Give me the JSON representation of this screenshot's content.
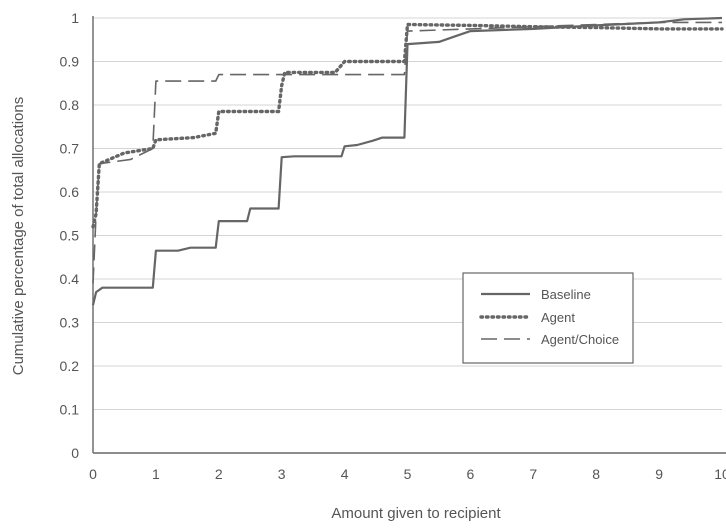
{
  "chart_data": {
    "type": "line",
    "title": "",
    "xlabel": "Amount given to recipient",
    "ylabel": "Cumulative percentage of total allocations",
    "xlim": [
      0,
      10
    ],
    "ylim": [
      0,
      1
    ],
    "xticks": [
      "0",
      "1",
      "2",
      "3",
      "4",
      "5",
      "6",
      "7",
      "8",
      "9",
      "10"
    ],
    "yticks": [
      "0",
      "0.1",
      "0.2",
      "0.3",
      "0.4",
      "0.5",
      "0.6",
      "0.7",
      "0.8",
      "0.9",
      "1"
    ],
    "grid": true,
    "legend_position": "right",
    "colors": {
      "line": "#666666",
      "grid": "#d4d4d4",
      "axis": "#666666"
    },
    "series": [
      {
        "name": "Baseline",
        "style": "solid",
        "x": [
          0,
          0.05,
          0.15,
          0.95,
          1.0,
          1.35,
          1.55,
          1.95,
          2.0,
          2.45,
          2.5,
          2.95,
          3.0,
          3.2,
          3.95,
          4.0,
          4.2,
          4.45,
          4.6,
          4.95,
          5.0,
          5.5,
          5.7,
          6.0,
          7.0,
          8.0,
          9.0,
          9.4,
          10.0
        ],
        "y": [
          0.34,
          0.37,
          0.38,
          0.38,
          0.465,
          0.465,
          0.472,
          0.472,
          0.533,
          0.533,
          0.562,
          0.562,
          0.68,
          0.682,
          0.682,
          0.705,
          0.708,
          0.718,
          0.725,
          0.725,
          0.94,
          0.945,
          0.955,
          0.97,
          0.975,
          0.983,
          0.99,
          0.997,
          1.0
        ]
      },
      {
        "name": "Agent",
        "style": "dotted",
        "x": [
          0,
          0.05,
          0.1,
          0.5,
          0.95,
          1.0,
          1.6,
          1.95,
          2.0,
          2.1,
          2.95,
          3.0,
          3.05,
          3.85,
          4.0,
          4.95,
          5.0,
          6.0,
          7.0,
          8.0,
          9.0,
          10.0
        ],
        "y": [
          0.52,
          0.55,
          0.665,
          0.69,
          0.7,
          0.72,
          0.725,
          0.735,
          0.785,
          0.785,
          0.785,
          0.845,
          0.875,
          0.875,
          0.9,
          0.9,
          0.985,
          0.983,
          0.98,
          0.978,
          0.975,
          0.975
        ]
      },
      {
        "name": "Agent/Choice",
        "style": "dashed",
        "x": [
          0,
          0.05,
          0.1,
          0.6,
          0.95,
          1.0,
          1.95,
          2.0,
          2.95,
          3.0,
          3.95,
          4.0,
          4.95,
          5.0,
          6.0,
          7.0,
          8.0,
          9.0,
          10.0
        ],
        "y": [
          0.39,
          0.55,
          0.665,
          0.675,
          0.7,
          0.855,
          0.855,
          0.87,
          0.87,
          0.87,
          0.87,
          0.87,
          0.87,
          0.97,
          0.975,
          0.98,
          0.985,
          0.99,
          0.99
        ]
      }
    ]
  }
}
